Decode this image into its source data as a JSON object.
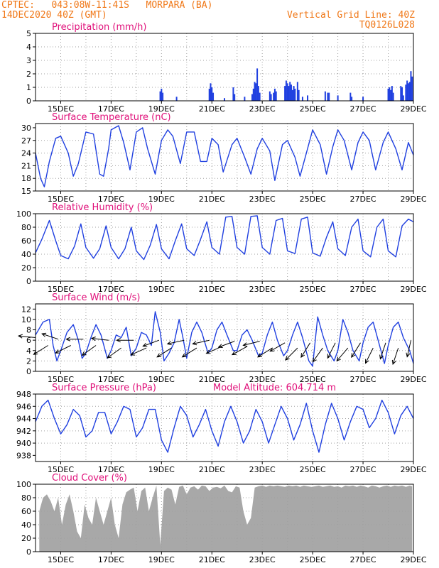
{
  "header": {
    "line1_left": "CPTEC:   043:08W-11:41S   MORPARA (BA)",
    "line2_left": "14DEC2020 40Z (GMT)",
    "line2_right": "Vertical Grid Line: 40Z",
    "line3_right": "TQ0126L028"
  },
  "colors": {
    "header": "#f07818",
    "title": "#e0107a",
    "series": "#2040e0",
    "cloud": "#a8a8a8",
    "grid": "#a0a0a0"
  },
  "x_axis": {
    "range": [
      14.0,
      29.0
    ],
    "tick_labels": [
      "15DEC",
      "17DEC",
      "19DEC",
      "21DEC",
      "23DEC",
      "25DEC",
      "27DEC",
      "29DEC"
    ],
    "tick_days": [
      15,
      17,
      19,
      21,
      23,
      25,
      27,
      29
    ]
  },
  "chart_data": [
    {
      "id": "precip",
      "type": "bar",
      "title": "Precipitation (mm/h)",
      "ylim": [
        0,
        5
      ],
      "yticks": [
        0,
        1,
        2,
        3,
        4,
        5
      ],
      "x": [
        18.95,
        19.0,
        19.05,
        19.6,
        20.9,
        20.95,
        21.0,
        21.05,
        21.5,
        21.85,
        21.9,
        22.3,
        22.6,
        22.65,
        22.7,
        22.75,
        22.8,
        22.85,
        22.9,
        23.3,
        23.35,
        23.45,
        23.5,
        23.55,
        23.9,
        23.95,
        24.0,
        24.05,
        24.1,
        24.15,
        24.2,
        24.25,
        24.3,
        24.4,
        24.45,
        24.6,
        24.8,
        25.5,
        25.6,
        25.65,
        26.0,
        26.5,
        26.55,
        27.0,
        28.0,
        28.05,
        28.1,
        28.15,
        28.2,
        28.5,
        28.55,
        28.6,
        28.7,
        28.75,
        28.8,
        28.85,
        28.9,
        28.95
      ],
      "values": [
        0.7,
        0.9,
        0.6,
        0.3,
        0.9,
        1.3,
        1.0,
        0.6,
        0.2,
        1.0,
        0.5,
        0.3,
        0.5,
        0.9,
        1.4,
        1.3,
        2.4,
        1.1,
        0.6,
        0.7,
        0.5,
        0.6,
        0.9,
        0.7,
        1.1,
        1.5,
        1.3,
        1.1,
        1.4,
        1.2,
        0.8,
        1.1,
        0.9,
        1.4,
        0.8,
        0.3,
        0.4,
        0.7,
        0.6,
        0.6,
        0.4,
        0.6,
        0.3,
        0.3,
        0.9,
        1.0,
        0.8,
        1.1,
        0.6,
        1.1,
        1.0,
        0.4,
        1.2,
        1.5,
        1.3,
        1.4,
        2.2,
        1.8
      ]
    },
    {
      "id": "temp",
      "type": "line",
      "title": "Surface Temperature (nC)",
      "ylim": [
        15,
        31
      ],
      "yticks": [
        15,
        18,
        21,
        24,
        27,
        30
      ],
      "x": [
        14.0,
        14.2,
        14.35,
        14.55,
        14.8,
        15.0,
        15.3,
        15.5,
        15.7,
        16.0,
        16.3,
        16.55,
        16.7,
        16.9,
        17.0,
        17.3,
        17.5,
        17.75,
        18.0,
        18.25,
        18.45,
        18.75,
        19.0,
        19.25,
        19.45,
        19.75,
        20.0,
        20.3,
        20.55,
        20.8,
        21.0,
        21.25,
        21.45,
        21.8,
        22.0,
        22.3,
        22.55,
        22.8,
        23.0,
        23.3,
        23.5,
        23.8,
        24.0,
        24.3,
        24.5,
        24.75,
        25.0,
        25.3,
        25.55,
        25.8,
        26.0,
        26.25,
        26.55,
        26.8,
        27.0,
        27.25,
        27.5,
        27.8,
        28.0,
        28.3,
        28.55,
        28.8,
        29.0
      ],
      "values": [
        24.0,
        18.0,
        16.0,
        22.0,
        27.5,
        28.0,
        24.0,
        18.5,
        21.5,
        29.0,
        28.5,
        19.0,
        18.5,
        25.0,
        29.5,
        30.5,
        26.5,
        20.0,
        29.0,
        30.0,
        25.0,
        19.0,
        27.0,
        29.5,
        28.0,
        21.5,
        29.0,
        29.0,
        22.0,
        22.0,
        27.5,
        26.0,
        19.5,
        26.0,
        27.5,
        23.0,
        19.0,
        25.0,
        27.5,
        24.5,
        17.5,
        26.0,
        27.0,
        23.0,
        18.5,
        24.0,
        29.5,
        26.0,
        19.0,
        25.5,
        29.5,
        27.0,
        20.0,
        26.5,
        29.0,
        27.0,
        20.0,
        26.5,
        29.0,
        25.0,
        20.0,
        26.5,
        23.5
      ]
    },
    {
      "id": "rh",
      "type": "line",
      "title": "Relative Humidity (%)",
      "ylim": [
        0,
        100
      ],
      "yticks": [
        0,
        20,
        40,
        60,
        80,
        100
      ],
      "x": [
        14.0,
        14.25,
        14.55,
        14.8,
        15.0,
        15.3,
        15.55,
        15.8,
        16.0,
        16.3,
        16.55,
        16.8,
        17.0,
        17.3,
        17.55,
        17.8,
        18.0,
        18.3,
        18.55,
        18.8,
        19.0,
        19.3,
        19.55,
        19.8,
        20.0,
        20.3,
        20.55,
        20.8,
        21.0,
        21.3,
        21.55,
        21.8,
        22.0,
        22.3,
        22.55,
        22.8,
        23.0,
        23.3,
        23.55,
        23.8,
        24.0,
        24.3,
        24.55,
        24.8,
        25.0,
        25.3,
        25.55,
        25.8,
        26.0,
        26.3,
        26.55,
        26.8,
        27.0,
        27.3,
        27.55,
        27.8,
        28.0,
        28.3,
        28.55,
        28.8,
        29.0
      ],
      "values": [
        42,
        62,
        90,
        60,
        38,
        33,
        52,
        85,
        50,
        34,
        48,
        82,
        50,
        33,
        48,
        80,
        45,
        32,
        53,
        84,
        48,
        33,
        60,
        85,
        48,
        38,
        62,
        88,
        50,
        40,
        95,
        96,
        50,
        40,
        96,
        97,
        50,
        40,
        90,
        93,
        45,
        41,
        92,
        95,
        42,
        37,
        65,
        88,
        48,
        38,
        80,
        92,
        45,
        36,
        80,
        92,
        45,
        36,
        82,
        92,
        88
      ]
    },
    {
      "id": "wind",
      "type": "line",
      "title": "Surface Wind (m/s)",
      "ylim": [
        0,
        13
      ],
      "yticks": [
        0,
        2,
        4,
        6,
        8,
        10,
        12
      ],
      "x": [
        14.0,
        14.3,
        14.55,
        14.7,
        14.85,
        15.0,
        15.25,
        15.5,
        15.7,
        15.85,
        16.0,
        16.2,
        16.4,
        16.6,
        16.85,
        17.0,
        17.2,
        17.4,
        17.6,
        17.8,
        18.0,
        18.2,
        18.4,
        18.6,
        18.75,
        18.95,
        19.1,
        19.3,
        19.5,
        19.7,
        19.85,
        20.0,
        20.2,
        20.4,
        20.6,
        20.85,
        21.0,
        21.2,
        21.4,
        21.6,
        21.85,
        22.0,
        22.2,
        22.4,
        22.6,
        22.85,
        23.0,
        23.2,
        23.4,
        23.6,
        23.85,
        24.0,
        24.2,
        24.4,
        24.6,
        24.85,
        25.0,
        25.2,
        25.4,
        25.6,
        25.85,
        26.0,
        26.2,
        26.4,
        26.6,
        26.85,
        27.0,
        27.2,
        27.4,
        27.6,
        27.85,
        28.0,
        28.2,
        28.4,
        28.6,
        28.85,
        29.0
      ],
      "values": [
        7.0,
        9.5,
        10.0,
        5.0,
        2.0,
        4.0,
        7.5,
        9.0,
        6.0,
        2.5,
        3.5,
        6.5,
        9.0,
        7.0,
        2.5,
        4.0,
        7.0,
        6.5,
        8.5,
        3.0,
        4.5,
        7.5,
        7.0,
        5.0,
        11.5,
        7.5,
        2.0,
        3.5,
        5.5,
        10.0,
        6.5,
        2.5,
        7.5,
        9.5,
        7.5,
        3.5,
        4.5,
        8.0,
        9.5,
        7.0,
        4.0,
        4.0,
        7.0,
        8.0,
        6.0,
        3.0,
        3.5,
        7.0,
        9.5,
        6.0,
        3.0,
        4.0,
        7.0,
        9.5,
        6.5,
        2.0,
        1.0,
        10.5,
        7.0,
        4.0,
        2.0,
        4.0,
        10.0,
        7.5,
        4.0,
        2.0,
        5.5,
        8.5,
        9.5,
        6.0,
        1.5,
        5.0,
        8.5,
        9.5,
        6.5,
        4.0,
        1.5
      ],
      "arrows_x": [
        14.0,
        14.5,
        14.9,
        15.4,
        15.9,
        16.4,
        16.9,
        17.4,
        17.9,
        18.4,
        18.9,
        19.4,
        19.9,
        20.4,
        20.9,
        21.4,
        21.9,
        22.4,
        22.9,
        23.4,
        23.9,
        24.4,
        24.9,
        25.4,
        25.9,
        26.4,
        26.9,
        27.4,
        27.9,
        28.4,
        28.9
      ],
      "arrows_u": [
        -1.0,
        -0.8,
        -0.9,
        -0.8,
        -1.0,
        -0.7,
        -0.9,
        -0.7,
        -0.9,
        -0.9,
        -0.8,
        -0.8,
        -0.9,
        -0.8,
        -0.9,
        -0.9,
        -0.8,
        -0.9,
        -0.8,
        -0.8,
        -0.7,
        -0.6,
        -0.5,
        -0.5,
        -0.4,
        -0.6,
        -0.5,
        -0.4,
        -0.3,
        -0.3,
        -0.2
      ],
      "arrows_v": [
        0.1,
        -0.5,
        0.3,
        -0.4,
        0.0,
        -0.5,
        0.1,
        -0.5,
        0.0,
        -0.4,
        -0.3,
        -0.5,
        -0.2,
        -0.5,
        -0.2,
        -0.4,
        -0.3,
        -0.5,
        -0.2,
        -0.5,
        -0.4,
        -0.6,
        -0.8,
        -0.7,
        -0.8,
        -0.7,
        -0.8,
        -0.8,
        -0.9,
        -0.9,
        -0.9
      ],
      "arrow_y": [
        6.5,
        5.0,
        6.2,
        5.0,
        6.2,
        5.0,
        6.0,
        4.5,
        6.0,
        4.5,
        6.0,
        4.5,
        6.0,
        4.5,
        6.0,
        4.8,
        5.8,
        4.8,
        5.8,
        4.5,
        5.5,
        4.5,
        5.5,
        4.5,
        5.5,
        4.5,
        5.5,
        4.5,
        5.5,
        4.5,
        6.0
      ]
    },
    {
      "id": "pres",
      "type": "line",
      "title": "Surface Pressure (hPa)",
      "annotation": "Model Altitude: 604.714 m",
      "ylim": [
        937,
        948
      ],
      "yticks": [
        938,
        940,
        942,
        944,
        946,
        948
      ],
      "x": [
        14.0,
        14.25,
        14.5,
        14.75,
        15.0,
        15.25,
        15.5,
        15.75,
        16.0,
        16.25,
        16.5,
        16.75,
        17.0,
        17.25,
        17.5,
        17.75,
        18.0,
        18.25,
        18.5,
        18.75,
        19.0,
        19.25,
        19.5,
        19.75,
        20.0,
        20.25,
        20.5,
        20.75,
        21.0,
        21.25,
        21.5,
        21.75,
        22.0,
        22.25,
        22.5,
        22.75,
        23.0,
        23.25,
        23.5,
        23.75,
        24.0,
        24.25,
        24.5,
        24.75,
        25.0,
        25.25,
        25.5,
        25.75,
        26.0,
        26.25,
        26.5,
        26.75,
        27.0,
        27.25,
        27.5,
        27.75,
        28.0,
        28.25,
        28.5,
        28.75,
        29.0
      ],
      "values": [
        943.5,
        946.0,
        947.0,
        944.0,
        941.5,
        943.0,
        945.5,
        944.5,
        941.0,
        942.0,
        945.0,
        945.0,
        941.5,
        943.5,
        946.0,
        945.5,
        941.0,
        942.5,
        945.5,
        945.5,
        940.5,
        938.5,
        942.5,
        946.0,
        944.5,
        941.0,
        943.0,
        945.5,
        942.0,
        939.5,
        943.5,
        946.0,
        943.5,
        940.0,
        942.0,
        945.5,
        943.5,
        940.0,
        943.0,
        946.0,
        944.0,
        940.5,
        943.0,
        946.5,
        942.0,
        938.5,
        943.0,
        946.5,
        944.0,
        940.5,
        943.5,
        946.0,
        945.5,
        942.5,
        944.0,
        947.0,
        945.0,
        941.5,
        944.5,
        946.0,
        944.0
      ]
    },
    {
      "id": "cloud",
      "type": "area",
      "title": "Cloud Cover (%)",
      "ylim": [
        0,
        100
      ],
      "yticks": [
        0,
        20,
        40,
        60,
        80,
        100
      ],
      "x": [
        14.15,
        14.3,
        14.45,
        14.6,
        14.75,
        14.9,
        15.05,
        15.2,
        15.35,
        15.5,
        15.65,
        15.8,
        15.95,
        16.1,
        16.25,
        16.4,
        16.55,
        16.7,
        16.85,
        17.0,
        17.15,
        17.3,
        17.45,
        17.6,
        17.75,
        17.9,
        18.05,
        18.2,
        18.35,
        18.5,
        18.65,
        18.8,
        18.95,
        19.1,
        19.25,
        19.4,
        19.55,
        19.7,
        19.85,
        20.0,
        20.15,
        20.3,
        20.45,
        20.6,
        20.75,
        20.9,
        21.05,
        21.2,
        21.35,
        21.5,
        21.65,
        21.8,
        21.95,
        22.1,
        22.25,
        22.4,
        22.55,
        22.7,
        22.85,
        23.0,
        23.15,
        23.3,
        23.45,
        23.6,
        23.75,
        23.9,
        24.05,
        24.2,
        24.35,
        24.5,
        24.65,
        24.8,
        24.95,
        25.1,
        25.25,
        25.4,
        25.55,
        25.7,
        25.85,
        26.0,
        26.15,
        26.3,
        26.45,
        26.6,
        26.75,
        26.9,
        27.05,
        27.2,
        27.35,
        27.5,
        27.65,
        27.8,
        27.95,
        28.1,
        28.25,
        28.4,
        28.55,
        28.7,
        28.85,
        28.95
      ],
      "values": [
        60,
        80,
        85,
        75,
        60,
        80,
        40,
        70,
        85,
        60,
        30,
        20,
        70,
        50,
        40,
        80,
        60,
        40,
        60,
        80,
        40,
        20,
        70,
        88,
        92,
        95,
        60,
        90,
        95,
        60,
        80,
        98,
        10,
        90,
        95,
        92,
        70,
        96,
        98,
        85,
        95,
        97,
        92,
        98,
        97,
        90,
        95,
        96,
        94,
        98,
        90,
        88,
        97,
        95,
        60,
        40,
        50,
        95,
        97,
        98,
        96,
        98,
        97,
        98,
        97,
        96,
        98,
        97,
        98,
        96,
        98,
        97,
        96,
        97,
        98,
        96,
        97,
        98,
        96,
        97,
        95,
        98,
        97,
        98,
        96,
        98,
        97,
        95,
        98,
        97,
        95,
        97,
        98,
        96,
        98,
        97,
        98,
        96,
        98,
        97
      ]
    }
  ]
}
